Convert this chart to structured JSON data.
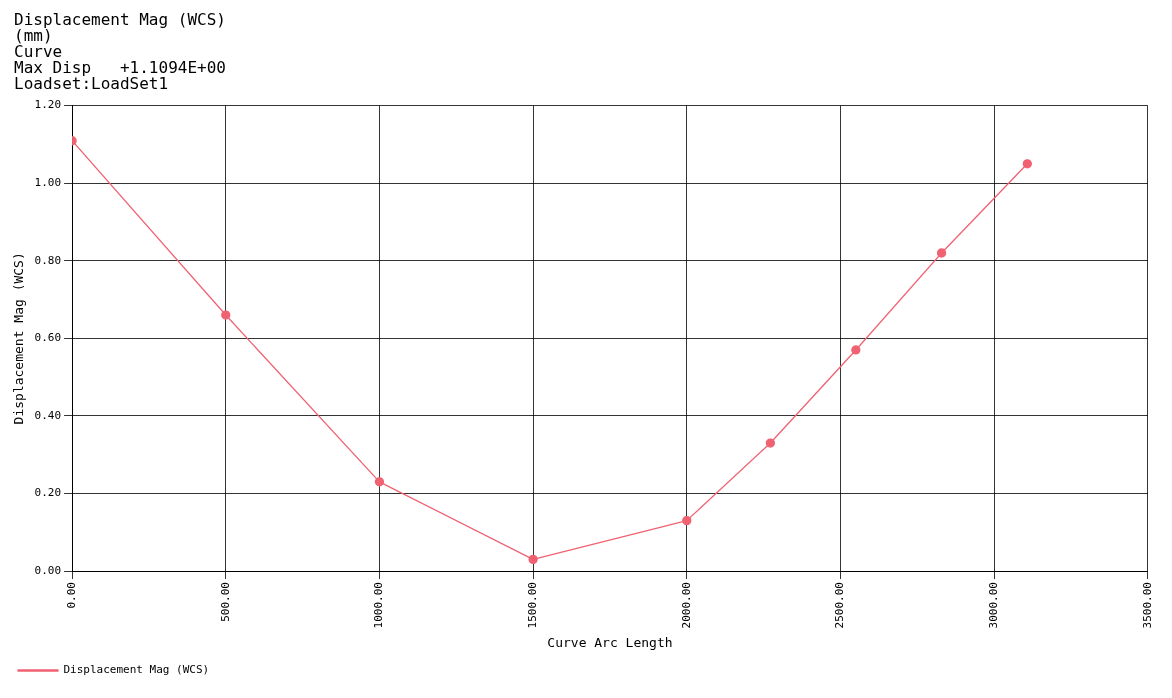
{
  "chart_data": {
    "type": "line",
    "title": "Displacement Mag (WCS)",
    "subtitle": "(mm)",
    "annotations": [
      "Curve",
      "Max Disp   +1.1094E+00",
      "Loadset:LoadSet1"
    ],
    "xlabel": "Curve Arc Length",
    "ylabel": "Displacement Mag (WCS)",
    "series": [
      {
        "name": "Displacement Mag (WCS)",
        "color": "#f06272",
        "x": [
          0,
          500,
          1000,
          1500,
          2000,
          2272,
          2550,
          2829,
          3108
        ],
        "values": [
          1.1094,
          0.66,
          0.23,
          0.03,
          0.13,
          0.33,
          0.57,
          0.82,
          1.05
        ]
      }
    ],
    "xlim": [
      0,
      3500
    ],
    "xticks": [
      {
        "value": 0,
        "label": "0.00"
      },
      {
        "value": 500,
        "label": "500.00"
      },
      {
        "value": 1000,
        "label": "1000.00"
      },
      {
        "value": 1500,
        "label": "1500.00"
      },
      {
        "value": 2000,
        "label": "2000.00"
      },
      {
        "value": 2500,
        "label": "2500.00"
      },
      {
        "value": 3000,
        "label": "3000.00"
      },
      {
        "value": 3500,
        "label": "3500.00"
      }
    ],
    "ylim": [
      0,
      1.2
    ],
    "yticks": [
      {
        "value": 0,
        "label": "0.00"
      },
      {
        "value": 0.2,
        "label": "0.20"
      },
      {
        "value": 0.4,
        "label": "0.40"
      },
      {
        "value": 0.6,
        "label": "0.60"
      },
      {
        "value": 0.8,
        "label": "0.80"
      },
      {
        "value": 1,
        "label": "1.00"
      },
      {
        "value": 1.2,
        "label": "1.20"
      }
    ],
    "grid": true,
    "legend": "bottom left",
    "marker": "circle",
    "line_style": "solid"
  }
}
